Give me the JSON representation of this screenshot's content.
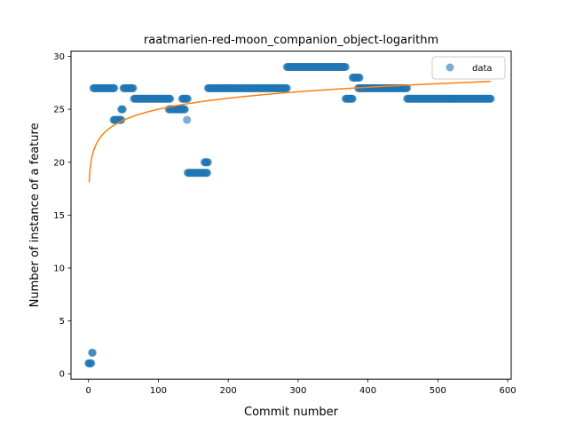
{
  "chart_data": {
    "type": "scatter",
    "title": "raatmarien-red-moon_companion_object-logarithm",
    "xlabel": "Commit number",
    "ylabel": "Number of instance of a feature",
    "xlim": [
      -25,
      605
    ],
    "ylim": [
      -0.5,
      30.5
    ],
    "xticks": [
      0,
      100,
      200,
      300,
      400,
      500,
      600
    ],
    "yticks": [
      0,
      5,
      10,
      15,
      20,
      25,
      30
    ],
    "legend_position": "top-right",
    "colors": {
      "data": "#1f77b4",
      "fit": "#ff7f0e"
    },
    "series": [
      {
        "name": "data",
        "kind": "scatter",
        "segments": [
          {
            "x_start": 0,
            "x_end": 4,
            "y": 1
          },
          {
            "x_start": 5,
            "x_end": 6,
            "y": 2
          },
          {
            "x_start": 7,
            "x_end": 37,
            "y": 27
          },
          {
            "x_start": 36,
            "x_end": 47,
            "y": 24
          },
          {
            "x_start": 47,
            "x_end": 49,
            "y": 25
          },
          {
            "x_start": 50,
            "x_end": 64,
            "y": 27
          },
          {
            "x_start": 65,
            "x_end": 117,
            "y": 26
          },
          {
            "x_start": 115,
            "x_end": 138,
            "y": 25
          },
          {
            "x_start": 134,
            "x_end": 142,
            "y": 26
          },
          {
            "x_start": 141,
            "x_end": 141,
            "y": 24
          },
          {
            "x_start": 142,
            "x_end": 170,
            "y": 19
          },
          {
            "x_start": 166,
            "x_end": 171,
            "y": 20
          },
          {
            "x_start": 171,
            "x_end": 284,
            "y": 27
          },
          {
            "x_start": 284,
            "x_end": 368,
            "y": 29
          },
          {
            "x_start": 368,
            "x_end": 378,
            "y": 26
          },
          {
            "x_start": 378,
            "x_end": 388,
            "y": 28
          },
          {
            "x_start": 386,
            "x_end": 456,
            "y": 27
          },
          {
            "x_start": 456,
            "x_end": 576,
            "y": 26
          }
        ]
      },
      {
        "name": "",
        "kind": "line",
        "model": "a + b*ln(x)",
        "a": 18.1,
        "b": 1.5,
        "x_start": 1,
        "x_end": 576
      }
    ]
  }
}
